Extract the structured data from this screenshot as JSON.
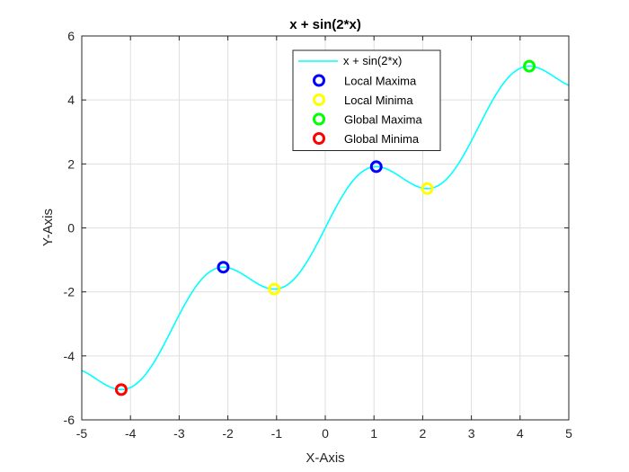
{
  "chart_data": {
    "type": "line",
    "title": "x + sin(2*x)",
    "xlabel": "X-Axis",
    "ylabel": "Y-Axis",
    "xlim": [
      -5,
      5
    ],
    "ylim": [
      -6,
      6
    ],
    "xticks": [
      -5,
      -4,
      -3,
      -2,
      -1,
      0,
      1,
      2,
      3,
      4,
      5
    ],
    "yticks": [
      -6,
      -4,
      -2,
      0,
      2,
      4,
      6
    ],
    "grid": true,
    "legend_position": "top-right",
    "curve": {
      "name": "x + sin(2*x)",
      "color": "#00FFFF",
      "function": "x + sin(2*x)"
    },
    "markers": [
      {
        "name": "Local Maxima",
        "color": "#0000FF",
        "points": [
          [
            -2.094,
            -1.228
          ],
          [
            1.047,
            1.913
          ]
        ]
      },
      {
        "name": "Local Minima",
        "color": "#FFFF00",
        "points": [
          [
            -1.047,
            -1.913
          ],
          [
            2.094,
            1.228
          ]
        ]
      },
      {
        "name": "Global Maxima",
        "color": "#00FF00",
        "points": [
          [
            4.189,
            5.055
          ]
        ]
      },
      {
        "name": "Global Minima",
        "color": "#FF0000",
        "points": [
          [
            -4.189,
            -5.055
          ]
        ]
      }
    ]
  }
}
